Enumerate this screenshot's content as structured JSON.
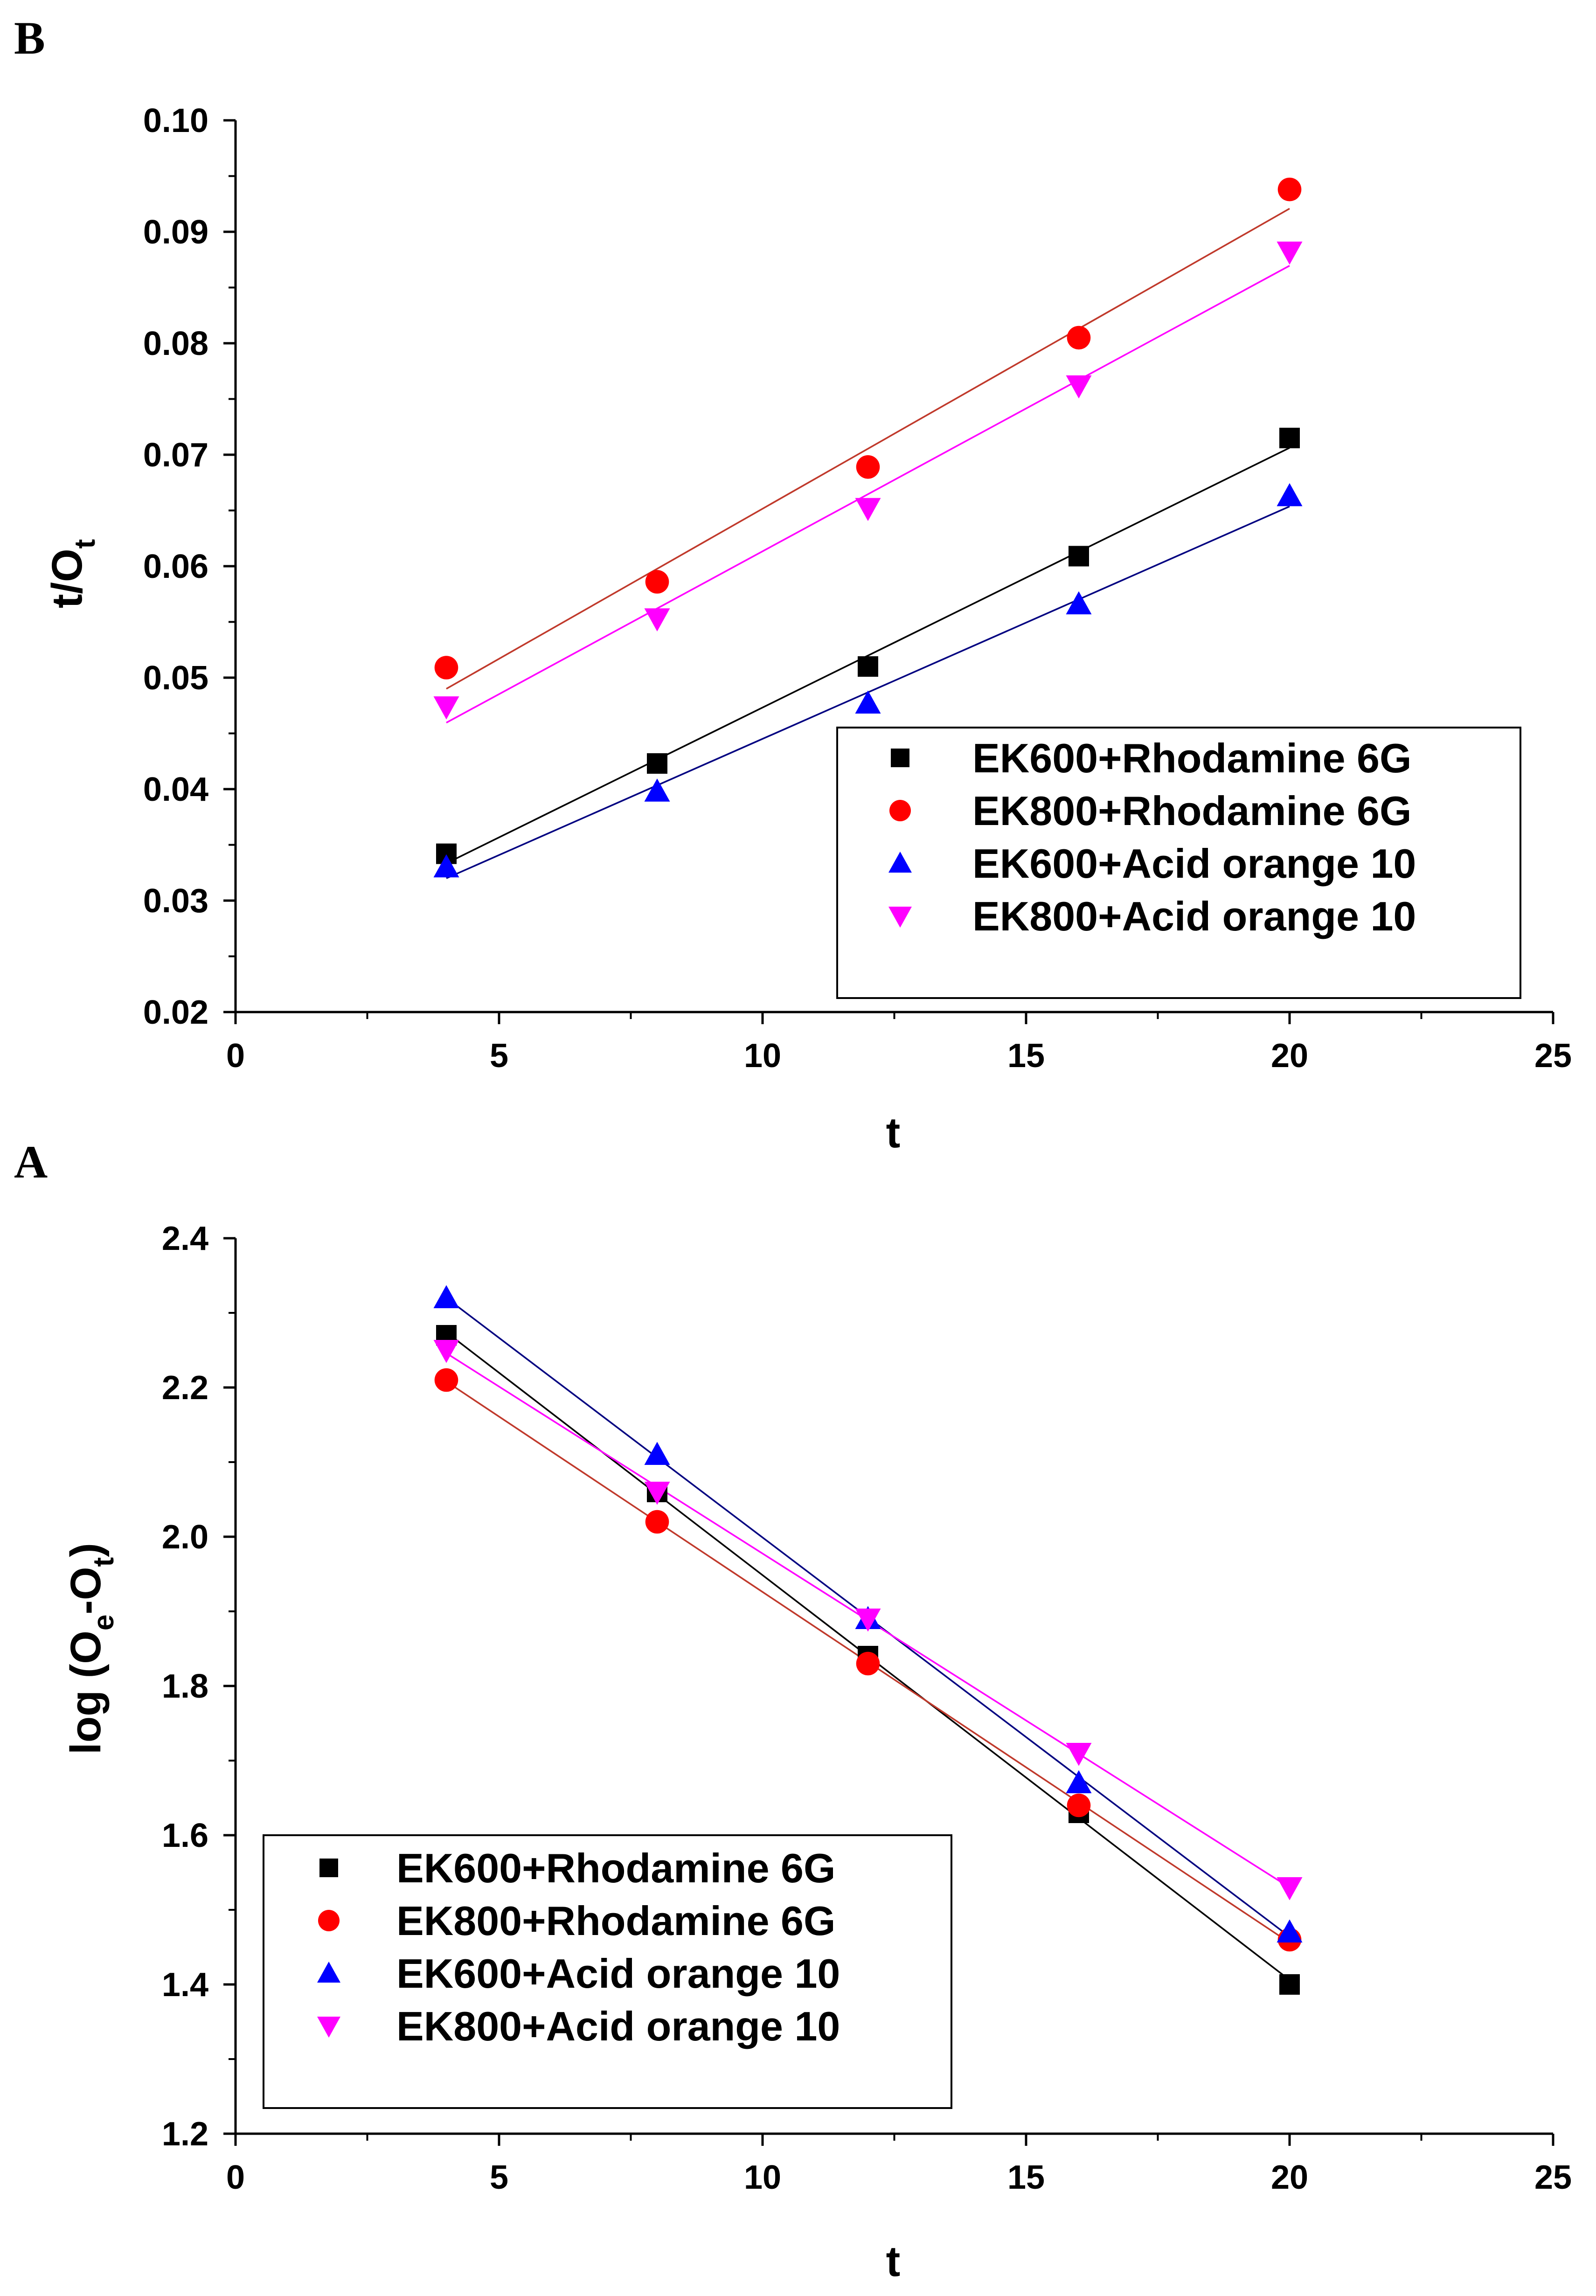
{
  "chart_data": [
    {
      "panel": "B",
      "type": "scatter",
      "xlabel": "t",
      "ylabel": "t/O",
      "ylabel_sub": "t",
      "xlim": [
        0,
        25
      ],
      "ylim": [
        0.02,
        0.1
      ],
      "x_ticks": [
        "0",
        "5",
        "10",
        "15",
        "20",
        "25"
      ],
      "y_ticks": [
        "0.02",
        "0.03",
        "0.04",
        "0.05",
        "0.06",
        "0.07",
        "0.08",
        "0.09",
        "0.10"
      ],
      "x": [
        4,
        8,
        12,
        16,
        20
      ],
      "legend_position": "lower-right",
      "series": [
        {
          "name": "EK600+Rhodamine 6G",
          "marker": "square",
          "color": "#000000",
          "line_color": "#000000",
          "values": [
            0.0342,
            0.0423,
            0.051,
            0.0609,
            0.0715
          ]
        },
        {
          "name": "EK800+Rhodamine 6G",
          "marker": "circle",
          "color": "#ff0000",
          "line_color": "#c0392b",
          "values": [
            0.0509,
            0.0586,
            0.0689,
            0.0805,
            0.0938
          ]
        },
        {
          "name": "EK600+Acid orange 10",
          "marker": "triangle-up",
          "color": "#0000ff",
          "line_color": "#000080",
          "values": [
            0.033,
            0.0398,
            0.0477,
            0.0566,
            0.0663
          ]
        },
        {
          "name": "EK800+Acid orange 10",
          "marker": "triangle-down",
          "color": "#ff00ff",
          "line_color": "#ff00ff",
          "values": [
            0.0474,
            0.0553,
            0.0652,
            0.0762,
            0.0882
          ]
        }
      ]
    },
    {
      "panel": "A",
      "type": "scatter",
      "xlabel": "t",
      "ylabel": "log (O",
      "ylabel_sub1": "e",
      "ylabel_mid": "-O",
      "ylabel_sub2": "t",
      "ylabel_end": ")",
      "xlim": [
        0,
        25
      ],
      "ylim": [
        1.2,
        2.4
      ],
      "x_ticks": [
        "0",
        "5",
        "10",
        "15",
        "20",
        "25"
      ],
      "y_ticks": [
        "1.2",
        "1.4",
        "1.6",
        "1.8",
        "2.0",
        "2.2",
        "2.4"
      ],
      "x": [
        4,
        8,
        12,
        16,
        20
      ],
      "legend_position": "lower-left",
      "series": [
        {
          "name": "EK600+Rhodamine 6G",
          "marker": "square",
          "color": "#000000",
          "line_color": "#000000",
          "values": [
            2.27,
            2.06,
            1.84,
            1.63,
            1.4
          ]
        },
        {
          "name": "EK800+Rhodamine 6G",
          "marker": "circle",
          "color": "#ff0000",
          "line_color": "#c0392b",
          "values": [
            2.21,
            2.02,
            1.83,
            1.64,
            1.46
          ]
        },
        {
          "name": "EK600+Acid orange 10",
          "marker": "triangle-up",
          "color": "#0000ff",
          "line_color": "#000080",
          "values": [
            2.32,
            2.11,
            1.89,
            1.67,
            1.47
          ]
        },
        {
          "name": "EK800+Acid orange 10",
          "marker": "triangle-down",
          "color": "#ff00ff",
          "line_color": "#ff00ff",
          "values": [
            2.25,
            2.06,
            1.89,
            1.71,
            1.53
          ]
        }
      ]
    }
  ]
}
